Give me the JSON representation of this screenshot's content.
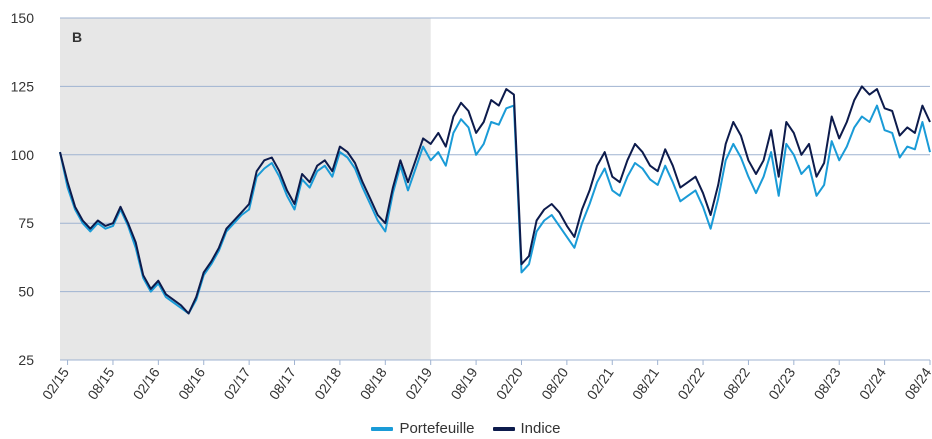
{
  "chart_data": {
    "type": "line",
    "title": "",
    "xlabel": "",
    "ylabel": "",
    "annotation_text": "B",
    "ylim": [
      25,
      150
    ],
    "yticks": [
      25,
      50,
      75,
      100,
      125,
      150
    ],
    "xticks": [
      "02/15",
      "08/15",
      "02/16",
      "08/16",
      "02/17",
      "08/17",
      "02/18",
      "08/18",
      "02/19",
      "08/19",
      "02/20",
      "08/20",
      "02/21",
      "08/21",
      "02/22",
      "08/22",
      "02/23",
      "08/23",
      "02/24",
      "08/24"
    ],
    "shaded_region": {
      "from": "01/15",
      "to": "02/19"
    },
    "grid": "horizontal",
    "legend_position": "bottom",
    "x": [
      "01/15",
      "02/15",
      "03/15",
      "04/15",
      "05/15",
      "06/15",
      "07/15",
      "08/15",
      "09/15",
      "10/15",
      "11/15",
      "12/15",
      "01/16",
      "02/16",
      "03/16",
      "04/16",
      "05/16",
      "06/16",
      "07/16",
      "08/16",
      "09/16",
      "10/16",
      "11/16",
      "12/16",
      "01/17",
      "02/17",
      "03/17",
      "04/17",
      "05/17",
      "06/17",
      "07/17",
      "08/17",
      "09/17",
      "10/17",
      "11/17",
      "12/17",
      "01/18",
      "02/18",
      "03/18",
      "04/18",
      "05/18",
      "06/18",
      "07/18",
      "08/18",
      "09/18",
      "10/18",
      "11/18",
      "12/18",
      "01/19",
      "02/19",
      "03/19",
      "04/19",
      "05/19",
      "06/19",
      "07/19",
      "08/19",
      "09/19",
      "10/19",
      "11/19",
      "12/19",
      "01/20",
      "02/20",
      "03/20",
      "04/20",
      "05/20",
      "06/20",
      "07/20",
      "08/20",
      "09/20",
      "10/20",
      "11/20",
      "12/20",
      "01/21",
      "02/21",
      "03/21",
      "04/21",
      "05/21",
      "06/21",
      "07/21",
      "08/21",
      "09/21",
      "10/21",
      "11/21",
      "12/21",
      "01/22",
      "02/22",
      "03/22",
      "04/22",
      "05/22",
      "06/22",
      "07/22",
      "08/22",
      "09/22",
      "10/22",
      "11/22",
      "12/22",
      "01/23",
      "02/23",
      "03/23",
      "04/23",
      "05/23",
      "06/23",
      "07/23",
      "08/23",
      "09/23",
      "10/23",
      "11/23",
      "12/23",
      "01/24",
      "02/24",
      "03/24",
      "04/24",
      "05/24",
      "06/24",
      "07/24",
      "08/24"
    ],
    "series": [
      {
        "name": "Portefeuille",
        "color": "#1a9bd7",
        "values": [
          101,
          88,
          80,
          75,
          72,
          75,
          73,
          74,
          80,
          74,
          66,
          55,
          50,
          53,
          48,
          46,
          44,
          42,
          47,
          56,
          60,
          65,
          72,
          75,
          78,
          80,
          92,
          95,
          97,
          92,
          85,
          80,
          91,
          88,
          94,
          96,
          92,
          101,
          99,
          95,
          88,
          82,
          76,
          72,
          86,
          96,
          87,
          95,
          103,
          98,
          101,
          96,
          108,
          113,
          110,
          100,
          104,
          112,
          111,
          117,
          118,
          57,
          60,
          72,
          76,
          78,
          74,
          70,
          66,
          75,
          82,
          90,
          95,
          87,
          85,
          92,
          97,
          95,
          91,
          89,
          96,
          90,
          83,
          85,
          87,
          81,
          73,
          84,
          98,
          104,
          99,
          92,
          86,
          92,
          101,
          85,
          104,
          100,
          93,
          96,
          85,
          89,
          105,
          98,
          103,
          110,
          114,
          112,
          118,
          109,
          108,
          99,
          103,
          102,
          112,
          101
        ]
      },
      {
        "name": "Indice",
        "color": "#0d1b4c",
        "values": [
          101,
          90,
          81,
          76,
          73,
          76,
          74,
          75,
          81,
          75,
          68,
          56,
          51,
          54,
          49,
          47,
          45,
          42,
          48,
          57,
          61,
          66,
          73,
          76,
          79,
          82,
          94,
          98,
          99,
          94,
          87,
          82,
          93,
          90,
          96,
          98,
          94,
          103,
          101,
          97,
          90,
          84,
          78,
          75,
          88,
          98,
          90,
          98,
          106,
          104,
          108,
          103,
          114,
          119,
          116,
          108,
          112,
          120,
          118,
          124,
          122,
          60,
          63,
          76,
          80,
          82,
          79,
          74,
          70,
          80,
          87,
          96,
          101,
          92,
          90,
          98,
          104,
          101,
          96,
          94,
          102,
          96,
          88,
          90,
          92,
          86,
          78,
          89,
          104,
          112,
          107,
          98,
          93,
          98,
          109,
          92,
          112,
          108,
          100,
          104,
          92,
          97,
          114,
          106,
          112,
          120,
          125,
          122,
          124,
          117,
          116,
          107,
          110,
          108,
          118,
          112
        ]
      }
    ]
  }
}
